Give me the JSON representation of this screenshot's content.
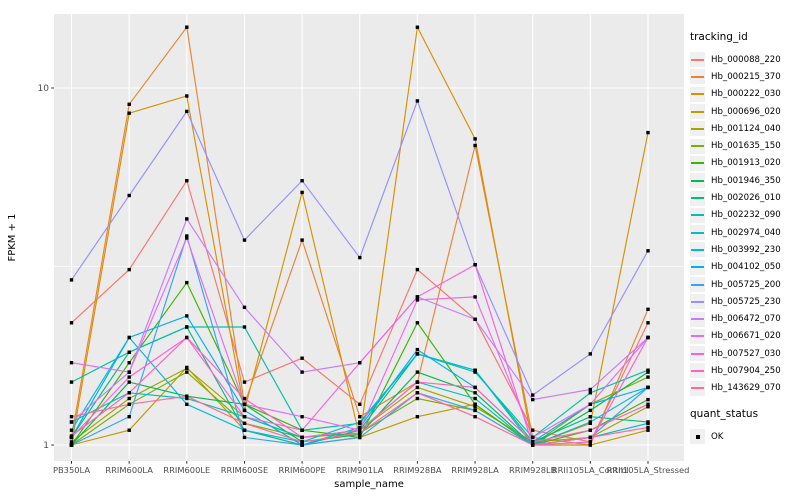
{
  "chart_data": {
    "type": "line",
    "title": "",
    "xlabel": "sample_name",
    "ylabel": "FPKM + 1",
    "y_scale": "log10",
    "y_ticks": [
      1,
      10
    ],
    "y_tick_labels": [
      "1",
      "10"
    ],
    "y_minor_ticks": [
      3.162
    ],
    "ylim": [
      0.9,
      16.2
    ],
    "grid": true,
    "panel_background": "#EBEBEB",
    "gridline_color": "#FFFFFF",
    "point_marker": "black-square",
    "legend": {
      "title": "tracking_id",
      "position": "right"
    },
    "legend2": {
      "title": "quant_status",
      "items": [
        {
          "label": "OK",
          "marker": "black-square"
        }
      ]
    },
    "categories": [
      "PB350LA",
      "RRIM600LA",
      "RRIM600LE",
      "RRIM600SE",
      "RRIM600PE",
      "RRIM901LA",
      "RRIM928BA",
      "RRIM928LA",
      "RRIM928LB",
      "RRII105LA_Control",
      "RRII105LA_Stressed"
    ],
    "series": [
      {
        "name": "Hb_000088_220",
        "color": "#F8766D",
        "values": [
          2.2,
          3.1,
          5.5,
          1.5,
          1.75,
          1.3,
          3.1,
          2.25,
          1.1,
          1.02,
          2.2
        ]
      },
      {
        "name": "Hb_000215_370",
        "color": "#EA8331",
        "values": [
          1.05,
          9.0,
          14.8,
          1.3,
          3.75,
          1.2,
          1.5,
          6.9,
          1.05,
          1.0,
          2.4
        ]
      },
      {
        "name": "Hb_000222_030",
        "color": "#D89000",
        "values": [
          1.0,
          8.5,
          9.5,
          1.25,
          5.1,
          1.05,
          14.8,
          7.2,
          1.0,
          1.15,
          7.5
        ]
      },
      {
        "name": "Hb_000696_020",
        "color": "#C09B00",
        "values": [
          1.0,
          1.1,
          1.65,
          1.1,
          1.0,
          1.05,
          1.2,
          1.3,
          1.0,
          1.0,
          1.1
        ]
      },
      {
        "name": "Hb_001124_040",
        "color": "#A3A500",
        "values": [
          1.02,
          1.35,
          1.64,
          1.2,
          1.05,
          1.1,
          1.45,
          1.28,
          1.02,
          1.05,
          1.28
        ]
      },
      {
        "name": "Hb_001635_150",
        "color": "#7CAE00",
        "values": [
          1.0,
          1.3,
          1.6,
          1.15,
          1.05,
          1.08,
          1.35,
          1.25,
          1.0,
          1.3,
          1.55
        ]
      },
      {
        "name": "Hb_001913_020",
        "color": "#39B600",
        "values": [
          1.0,
          1.7,
          2.85,
          1.3,
          1.1,
          1.05,
          2.2,
          1.3,
          1.0,
          1.1,
          1.34
        ]
      },
      {
        "name": "Hb_001946_350",
        "color": "#00BB4E",
        "values": [
          1.0,
          1.5,
          1.37,
          1.3,
          1.02,
          1.07,
          1.6,
          1.4,
          1.0,
          1.25,
          1.6
        ]
      },
      {
        "name": "Hb_002026_010",
        "color": "#00BF7D",
        "values": [
          1.05,
          1.82,
          2.14,
          1.1,
          1.0,
          1.1,
          1.8,
          1.62,
          1.02,
          1.2,
          1.16
        ]
      },
      {
        "name": "Hb_002232_090",
        "color": "#00C1A3",
        "values": [
          1.5,
          1.82,
          2.14,
          2.14,
          1.1,
          1.15,
          1.8,
          1.6,
          1.05,
          1.4,
          1.62
        ]
      },
      {
        "name": "Hb_002974_040",
        "color": "#00BFC4",
        "values": [
          1.16,
          1.4,
          1.35,
          1.2,
          1.05,
          1.1,
          1.5,
          1.35,
          1.0,
          1.05,
          1.15
        ]
      },
      {
        "name": "Hb_003992_230",
        "color": "#00BAE0",
        "values": [
          1.1,
          2.0,
          1.3,
          1.1,
          1.02,
          1.16,
          1.8,
          1.62,
          1.0,
          1.16,
          1.45
        ]
      },
      {
        "name": "Hb_004102_050",
        "color": "#00B0F6",
        "values": [
          1.05,
          2.0,
          2.3,
          1.25,
          1.0,
          1.12,
          1.85,
          1.45,
          1.02,
          1.3,
          1.45
        ]
      },
      {
        "name": "Hb_005725_200",
        "color": "#35A2FF",
        "values": [
          1.0,
          1.2,
          3.85,
          1.05,
          1.0,
          1.05,
          1.4,
          1.25,
          1.0,
          1.05,
          1.45
        ]
      },
      {
        "name": "Hb_005725_230",
        "color": "#9590FF",
        "values": [
          2.9,
          5.0,
          8.6,
          3.75,
          5.5,
          3.35,
          9.2,
          3.2,
          1.38,
          1.8,
          3.5
        ]
      },
      {
        "name": "Hb_006472_070",
        "color": "#C77CFF",
        "values": [
          1.16,
          1.6,
          4.3,
          2.43,
          1.6,
          1.7,
          2.6,
          2.25,
          1.34,
          1.43,
          2.0
        ]
      },
      {
        "name": "Hb_006671_020",
        "color": "#E76BF3",
        "values": [
          1.7,
          1.6,
          3.8,
          1.3,
          1.2,
          1.1,
          2.55,
          2.6,
          1.05,
          1.3,
          2.0
        ]
      },
      {
        "name": "Hb_007527_030",
        "color": "#FA62DB",
        "values": [
          1.05,
          1.55,
          2.0,
          1.2,
          1.1,
          1.7,
          2.6,
          3.2,
          1.0,
          1.02,
          2.0
        ]
      },
      {
        "name": "Hb_007904_250",
        "color": "#FF62BC",
        "values": [
          1.06,
          1.4,
          2.0,
          1.35,
          1.05,
          1.1,
          1.5,
          1.45,
          1.02,
          1.1,
          1.3
        ]
      },
      {
        "name": "Hb_143629_070",
        "color": "#FF6A98",
        "values": [
          1.2,
          1.3,
          1.37,
          1.15,
          1.02,
          1.08,
          1.4,
          1.2,
          1.0,
          1.05,
          1.12
        ]
      }
    ]
  }
}
